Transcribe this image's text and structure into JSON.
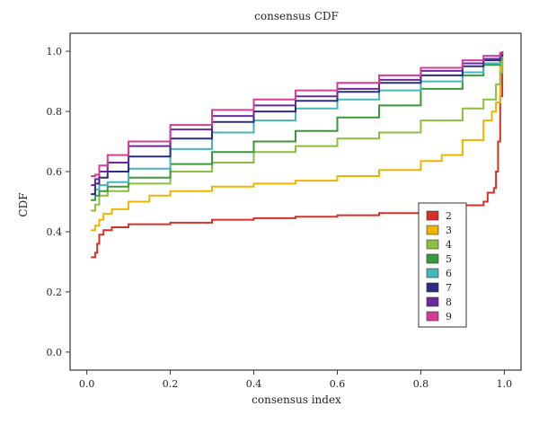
{
  "chart_data": {
    "type": "line",
    "title": "consensus CDF",
    "xlabel": "consensus index",
    "ylabel": "CDF",
    "xlim": [
      -0.04,
      1.04
    ],
    "ylim": [
      -0.06,
      1.06
    ],
    "xticks": [
      0.0,
      0.2,
      0.4,
      0.6,
      0.8,
      1.0
    ],
    "xtick_labels": [
      "0.0",
      "0.2",
      "0.4",
      "0.6",
      "0.8",
      "1.0"
    ],
    "yticks": [
      0.0,
      0.2,
      0.4,
      0.6,
      0.8,
      1.0
    ],
    "ytick_labels": [
      "0.0",
      "0.2",
      "0.4",
      "0.6",
      "0.8",
      "1.0"
    ],
    "grid": false,
    "legend_position": "bottom-right",
    "series": [
      {
        "name": "2",
        "color": "#d73027",
        "points": [
          [
            0.01,
            0.315
          ],
          [
            0.02,
            0.33
          ],
          [
            0.025,
            0.36
          ],
          [
            0.03,
            0.39
          ],
          [
            0.04,
            0.405
          ],
          [
            0.06,
            0.415
          ],
          [
            0.1,
            0.425
          ],
          [
            0.2,
            0.43
          ],
          [
            0.3,
            0.44
          ],
          [
            0.4,
            0.445
          ],
          [
            0.5,
            0.45
          ],
          [
            0.6,
            0.455
          ],
          [
            0.7,
            0.462
          ],
          [
            0.8,
            0.472
          ],
          [
            0.9,
            0.488
          ],
          [
            0.95,
            0.5
          ],
          [
            0.96,
            0.53
          ],
          [
            0.975,
            0.545
          ],
          [
            0.98,
            0.6
          ],
          [
            0.985,
            0.7
          ],
          [
            0.99,
            0.85
          ],
          [
            0.995,
            1.0
          ]
        ]
      },
      {
        "name": "3",
        "color": "#f0b400",
        "points": [
          [
            0.01,
            0.405
          ],
          [
            0.02,
            0.42
          ],
          [
            0.03,
            0.44
          ],
          [
            0.04,
            0.46
          ],
          [
            0.06,
            0.475
          ],
          [
            0.1,
            0.5
          ],
          [
            0.15,
            0.52
          ],
          [
            0.2,
            0.535
          ],
          [
            0.3,
            0.55
          ],
          [
            0.4,
            0.56
          ],
          [
            0.5,
            0.57
          ],
          [
            0.6,
            0.585
          ],
          [
            0.7,
            0.605
          ],
          [
            0.8,
            0.635
          ],
          [
            0.85,
            0.655
          ],
          [
            0.9,
            0.705
          ],
          [
            0.95,
            0.77
          ],
          [
            0.97,
            0.8
          ],
          [
            0.98,
            0.83
          ],
          [
            0.99,
            0.95
          ],
          [
            0.995,
            1.0
          ]
        ]
      },
      {
        "name": "4",
        "color": "#8cbf3f",
        "points": [
          [
            0.01,
            0.47
          ],
          [
            0.02,
            0.49
          ],
          [
            0.03,
            0.52
          ],
          [
            0.05,
            0.535
          ],
          [
            0.1,
            0.56
          ],
          [
            0.2,
            0.6
          ],
          [
            0.3,
            0.63
          ],
          [
            0.4,
            0.665
          ],
          [
            0.5,
            0.685
          ],
          [
            0.6,
            0.71
          ],
          [
            0.7,
            0.73
          ],
          [
            0.8,
            0.77
          ],
          [
            0.9,
            0.81
          ],
          [
            0.95,
            0.84
          ],
          [
            0.98,
            0.89
          ],
          [
            0.99,
            0.93
          ],
          [
            0.995,
            1.0
          ]
        ]
      },
      {
        "name": "5",
        "color": "#3a9a3a",
        "points": [
          [
            0.01,
            0.505
          ],
          [
            0.02,
            0.52
          ],
          [
            0.03,
            0.535
          ],
          [
            0.05,
            0.55
          ],
          [
            0.1,
            0.58
          ],
          [
            0.2,
            0.625
          ],
          [
            0.3,
            0.665
          ],
          [
            0.4,
            0.7
          ],
          [
            0.5,
            0.735
          ],
          [
            0.6,
            0.78
          ],
          [
            0.7,
            0.82
          ],
          [
            0.8,
            0.875
          ],
          [
            0.9,
            0.92
          ],
          [
            0.95,
            0.955
          ],
          [
            0.99,
            0.975
          ],
          [
            0.995,
            1.0
          ]
        ]
      },
      {
        "name": "6",
        "color": "#45b7b7",
        "points": [
          [
            0.01,
            0.525
          ],
          [
            0.02,
            0.54
          ],
          [
            0.03,
            0.555
          ],
          [
            0.05,
            0.565
          ],
          [
            0.1,
            0.61
          ],
          [
            0.2,
            0.675
          ],
          [
            0.3,
            0.73
          ],
          [
            0.4,
            0.77
          ],
          [
            0.5,
            0.81
          ],
          [
            0.6,
            0.84
          ],
          [
            0.7,
            0.87
          ],
          [
            0.8,
            0.9
          ],
          [
            0.9,
            0.93
          ],
          [
            0.95,
            0.96
          ],
          [
            0.99,
            0.98
          ],
          [
            0.995,
            1.0
          ]
        ]
      },
      {
        "name": "7",
        "color": "#2b2d84",
        "points": [
          [
            0.01,
            0.525
          ],
          [
            0.02,
            0.56
          ],
          [
            0.03,
            0.58
          ],
          [
            0.05,
            0.6
          ],
          [
            0.1,
            0.65
          ],
          [
            0.2,
            0.71
          ],
          [
            0.3,
            0.765
          ],
          [
            0.4,
            0.8
          ],
          [
            0.5,
            0.835
          ],
          [
            0.6,
            0.865
          ],
          [
            0.7,
            0.895
          ],
          [
            0.8,
            0.92
          ],
          [
            0.9,
            0.95
          ],
          [
            0.95,
            0.97
          ],
          [
            0.99,
            0.985
          ],
          [
            0.995,
            1.0
          ]
        ]
      },
      {
        "name": "8",
        "color": "#6a2a9a",
        "points": [
          [
            0.01,
            0.555
          ],
          [
            0.02,
            0.575
          ],
          [
            0.03,
            0.6
          ],
          [
            0.05,
            0.63
          ],
          [
            0.1,
            0.685
          ],
          [
            0.2,
            0.74
          ],
          [
            0.3,
            0.785
          ],
          [
            0.4,
            0.82
          ],
          [
            0.5,
            0.85
          ],
          [
            0.6,
            0.875
          ],
          [
            0.7,
            0.905
          ],
          [
            0.8,
            0.935
          ],
          [
            0.9,
            0.96
          ],
          [
            0.95,
            0.975
          ],
          [
            0.99,
            0.99
          ],
          [
            0.995,
            1.0
          ]
        ]
      },
      {
        "name": "9",
        "color": "#d63c96",
        "points": [
          [
            0.01,
            0.585
          ],
          [
            0.02,
            0.59
          ],
          [
            0.03,
            0.62
          ],
          [
            0.05,
            0.655
          ],
          [
            0.1,
            0.7
          ],
          [
            0.2,
            0.755
          ],
          [
            0.3,
            0.805
          ],
          [
            0.4,
            0.84
          ],
          [
            0.5,
            0.87
          ],
          [
            0.6,
            0.895
          ],
          [
            0.7,
            0.92
          ],
          [
            0.8,
            0.945
          ],
          [
            0.9,
            0.97
          ],
          [
            0.95,
            0.985
          ],
          [
            0.99,
            0.995
          ],
          [
            0.995,
            1.0
          ]
        ]
      }
    ]
  }
}
